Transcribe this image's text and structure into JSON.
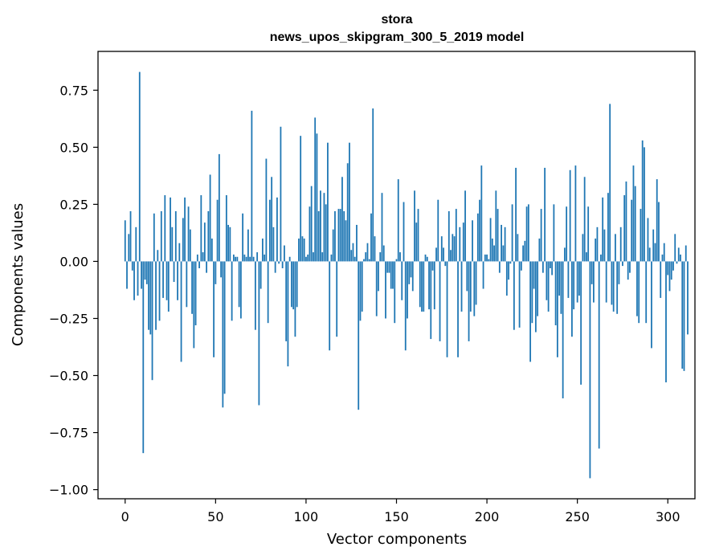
{
  "chart_data": {
    "type": "bar",
    "title_line1": "stora",
    "title_line2": "news_upos_skipgram_300_5_2019 model",
    "xlabel": "Vector components",
    "ylabel": "Components values",
    "xlim": [
      -15,
      315
    ],
    "ylim": [
      -1.04,
      0.92
    ],
    "xticks": [
      0,
      50,
      100,
      150,
      200,
      250,
      300
    ],
    "xtick_labels": [
      "0",
      "50",
      "100",
      "150",
      "200",
      "250",
      "300"
    ],
    "yticks": [
      0.75,
      0.5,
      0.25,
      0.0,
      -0.25,
      -0.5,
      -0.75,
      -1.0
    ],
    "ytick_labels": [
      "0.75",
      "0.50",
      "0.25",
      "0.00",
      "−0.25",
      "−0.50",
      "−0.75",
      "−1.00"
    ],
    "bar_color": "#1f77b4",
    "grid": false,
    "legend": "none",
    "values": [
      0.18,
      -0.12,
      0.12,
      0.22,
      -0.04,
      -0.17,
      0.15,
      -0.15,
      0.83,
      -0.12,
      -0.84,
      -0.08,
      -0.1,
      -0.3,
      -0.32,
      -0.52,
      0.21,
      -0.3,
      0.05,
      -0.26,
      0.22,
      -0.16,
      0.29,
      -0.17,
      -0.22,
      0.28,
      0.15,
      -0.09,
      0.22,
      -0.17,
      0.08,
      -0.44,
      0.19,
      0.28,
      -0.2,
      0.24,
      0.14,
      -0.23,
      -0.38,
      -0.28,
      0.03,
      -0.03,
      0.29,
      0.04,
      0.17,
      -0.05,
      0.22,
      0.38,
      0.1,
      -0.42,
      -0.1,
      0.27,
      0.47,
      -0.07,
      -0.64,
      -0.58,
      0.29,
      0.16,
      0.15,
      -0.26,
      0.03,
      0.02,
      0.02,
      -0.2,
      -0.25,
      0.21,
      0.03,
      0.02,
      0.14,
      0.02,
      0.66,
      0.02,
      -0.3,
      0.04,
      -0.63,
      -0.12,
      0.1,
      0.03,
      0.45,
      -0.27,
      0.27,
      0.37,
      0.15,
      -0.05,
      0.28,
      -0.01,
      0.59,
      -0.03,
      0.07,
      -0.35,
      -0.46,
      0.02,
      -0.2,
      -0.21,
      -0.33,
      -0.2,
      0.1,
      0.55,
      0.11,
      0.1,
      0.02,
      0.03,
      0.24,
      0.33,
      0.04,
      0.63,
      0.56,
      0.22,
      0.31,
      0.04,
      0.3,
      0.25,
      0.52,
      -0.39,
      0.03,
      0.14,
      0.22,
      -0.33,
      0.23,
      0.23,
      0.37,
      0.22,
      0.18,
      0.43,
      0.52,
      0.05,
      0.08,
      0.02,
      0.16,
      -0.65,
      -0.26,
      -0.22,
      0.01,
      0.04,
      0.08,
      0.01,
      0.21,
      0.67,
      0.11,
      -0.24,
      -0.13,
      0.04,
      0.3,
      0.07,
      -0.25,
      -0.05,
      -0.05,
      -0.12,
      -0.12,
      -0.27,
      0.01,
      0.36,
      0.04,
      -0.17,
      0.26,
      -0.39,
      -0.25,
      -0.1,
      -0.07,
      -0.13,
      0.31,
      0.17,
      0.23,
      -0.2,
      -0.22,
      -0.22,
      0.03,
      0.02,
      -0.21,
      -0.34,
      -0.04,
      -0.21,
      0.06,
      0.27,
      -0.35,
      0.11,
      0.06,
      -0.02,
      -0.42,
      0.22,
      0.05,
      0.12,
      0.11,
      0.23,
      -0.42,
      0.15,
      -0.22,
      0.17,
      0.31,
      -0.13,
      -0.35,
      -0.22,
      0.18,
      -0.24,
      -0.19,
      0.21,
      0.27,
      0.42,
      -0.12,
      0.03,
      0.03,
      0.01,
      0.19,
      0.1,
      0.07,
      0.31,
      0.23,
      -0.05,
      0.16,
      0.07,
      0.15,
      -0.15,
      -0.08,
      -0.01,
      0.25,
      -0.3,
      0.41,
      0.12,
      -0.29,
      -0.04,
      0.07,
      0.09,
      0.24,
      0.25,
      -0.44,
      -0.27,
      -0.12,
      -0.31,
      -0.24,
      0.1,
      0.23,
      -0.05,
      0.41,
      -0.17,
      -0.22,
      -0.03,
      -0.06,
      0.25,
      -0.28,
      -0.42,
      -0.15,
      -0.23,
      -0.6,
      0.06,
      0.24,
      -0.16,
      0.4,
      -0.33,
      -0.21,
      0.42,
      -0.18,
      -0.15,
      -0.54,
      0.12,
      0.37,
      0.04,
      0.24,
      -0.95,
      -0.1,
      -0.18,
      0.1,
      0.15,
      -0.82,
      0.03,
      0.28,
      0.14,
      -0.18,
      0.3,
      0.69,
      -0.19,
      -0.22,
      0.12,
      -0.23,
      -0.1,
      0.15,
      -0.02,
      0.29,
      0.35,
      -0.08,
      -0.05,
      0.27,
      0.42,
      0.33,
      -0.24,
      -0.27,
      0.23,
      0.53,
      0.5,
      -0.27,
      0.19,
      0.06,
      -0.38,
      0.14,
      0.08,
      0.36,
      0.26,
      -0.16,
      0.03,
      0.08,
      -0.53,
      -0.06,
      -0.13,
      -0.08,
      -0.04,
      0.12,
      -0.01,
      0.06,
      0.03,
      -0.47,
      -0.48,
      0.07,
      -0.32
    ]
  }
}
